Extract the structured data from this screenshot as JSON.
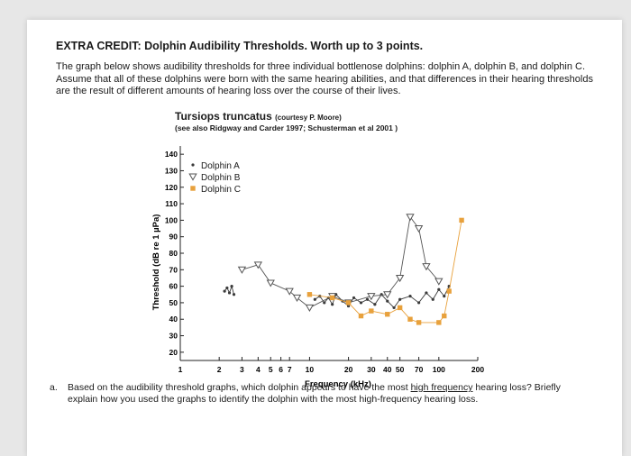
{
  "heading": "EXTRA CREDIT: Dolphin Audibility Thresholds. Worth up to 3 points.",
  "intro": "The graph below shows audibility thresholds for three individual bottlenose dolphins: dolphin A, dolphin B, and dolphin C. Assume that all of these dolphins were born with the same hearing abilities, and that differences in their hearing thresholds are the result of different amounts of hearing loss over the course of their lives.",
  "chart_data": {
    "type": "line",
    "title": "Tursiops truncatus",
    "title_credit": "(courtesy P. Moore)",
    "subtitle": "(see also Ridgway and Carder 1997; Schusterman et al 2001 )",
    "xlabel": "Frequency (kHz)",
    "ylabel": "Threshold (dB re 1 µPa)",
    "xscale": "log",
    "xlim": [
      1,
      200
    ],
    "ylim": [
      15,
      145
    ],
    "x_ticks": [
      1,
      2,
      3,
      4,
      5,
      6,
      7,
      10,
      20,
      30,
      40,
      50,
      70,
      100,
      200
    ],
    "x_tick_labels": [
      "1",
      "2",
      "3",
      "4",
      "5",
      "6",
      "7",
      "10",
      "20",
      "30",
      "40",
      "50",
      "70",
      "100",
      "200"
    ],
    "y_ticks": [
      20,
      30,
      40,
      50,
      60,
      70,
      80,
      90,
      100,
      110,
      120,
      130,
      140
    ],
    "legend_position": "top-left",
    "grid": false,
    "series": [
      {
        "name": "Dolphin A",
        "marker": "dot",
        "color": "#3a3a3a",
        "x": [
          2.2,
          2.3,
          2.4,
          2.5,
          2.6,
          11,
          12,
          13,
          14,
          15,
          16,
          18,
          20,
          22,
          25,
          28,
          32,
          36,
          40,
          45,
          50,
          60,
          70,
          80,
          90,
          100,
          110,
          120
        ],
        "y": [
          57,
          59,
          56,
          60,
          55,
          52,
          54,
          50,
          53,
          49,
          55,
          51,
          48,
          53,
          50,
          52,
          49,
          55,
          51,
          47,
          52,
          54,
          50,
          56,
          52,
          58,
          54,
          60
        ]
      },
      {
        "name": "Dolphin B",
        "marker": "triangle-down",
        "color": "#555555",
        "x": [
          3,
          4,
          5,
          7,
          8,
          10,
          15,
          20,
          30,
          40,
          50,
          60,
          70,
          80,
          100
        ],
        "y": [
          70,
          73,
          62,
          57,
          53,
          47,
          54,
          50,
          54,
          55,
          65,
          102,
          95,
          72,
          63
        ]
      },
      {
        "name": "Dolphin C",
        "marker": "square",
        "color": "#e8a13c",
        "x": [
          10,
          15,
          20,
          25,
          30,
          40,
          50,
          60,
          70,
          100,
          110,
          120,
          150
        ],
        "y": [
          55,
          53,
          50,
          42,
          45,
          43,
          47,
          40,
          38,
          38,
          42,
          57,
          100
        ]
      }
    ]
  },
  "question": {
    "number": "a.",
    "before": "Based on the audibility threshold graphs, which dolphin appears to have the most ",
    "highlight": "high frequency",
    "after": " hearing loss? Briefly explain how you used the graphs to identify the dolphin with the most high-frequency hearing loss."
  }
}
